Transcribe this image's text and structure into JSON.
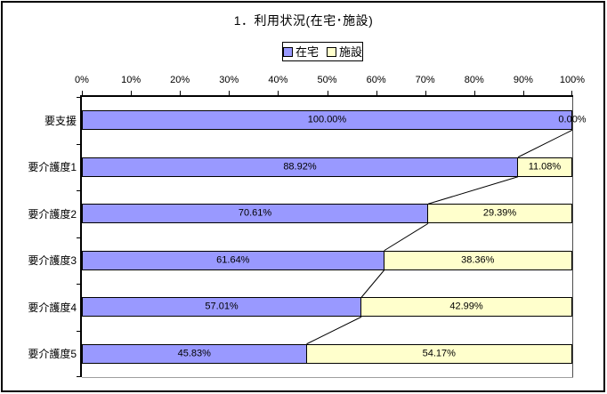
{
  "chart_data": {
    "type": "bar",
    "orientation": "horizontal",
    "stacking": "percent",
    "title": "1．利用状況(在宅･施設)",
    "categories": [
      "要支援",
      "要介護度1",
      "要介護度2",
      "要介護度3",
      "要介護度4",
      "要介護度5"
    ],
    "series": [
      {
        "name": "在宅",
        "color": "#9999FF",
        "values": [
          100.0,
          88.92,
          70.61,
          61.64,
          57.01,
          45.83
        ],
        "labels": [
          "100.00%",
          "88.92%",
          "70.61%",
          "61.64%",
          "57.01%",
          "45.83%"
        ]
      },
      {
        "name": "施設",
        "color": "#FFFFCC",
        "values": [
          0.0,
          11.08,
          29.39,
          38.36,
          42.99,
          54.17
        ],
        "labels": [
          "0.00%",
          "11.08%",
          "29.39%",
          "38.36%",
          "42.99%",
          "54.17%"
        ]
      }
    ],
    "x_axis": {
      "position": "top",
      "min": 0,
      "max": 100,
      "tick_labels": [
        "0%",
        "10%",
        "20%",
        "30%",
        "40%",
        "50%",
        "60%",
        "70%",
        "80%",
        "90%",
        "100%"
      ]
    },
    "legend": {
      "position": "top"
    },
    "series_lines": true,
    "grid": false,
    "colors": {
      "bar_border": "#000000",
      "series_line": "#000000",
      "background": "#FFFFFF"
    }
  }
}
